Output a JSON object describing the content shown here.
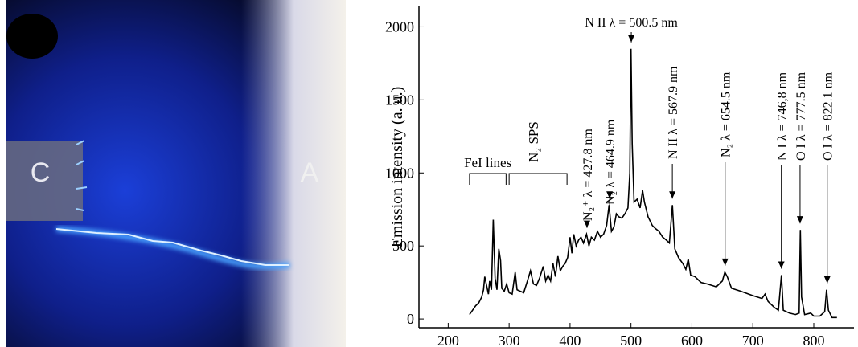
{
  "photo_labels": [
    "C",
    "A"
  ],
  "chart_data": {
    "type": "line",
    "ylabel": "Emission intensity (a. u.)",
    "xlim": [
      152,
      866
    ],
    "ylim": [
      -60,
      2140
    ],
    "xticks": [
      200,
      300,
      400,
      500,
      600,
      700,
      800
    ],
    "yticks": [
      0,
      500,
      1000,
      1500,
      2000
    ],
    "x": [
      235,
      240,
      245,
      250,
      255,
      258,
      260,
      263,
      266,
      268,
      271,
      274,
      277,
      280,
      283,
      286,
      288,
      292,
      296,
      300,
      305,
      310,
      313,
      318,
      324,
      330,
      335,
      340,
      345,
      350,
      356,
      360,
      364,
      368,
      372,
      376,
      380,
      384,
      388,
      392,
      396,
      400,
      403,
      406,
      410,
      414,
      418,
      422,
      427,
      431,
      435,
      440,
      445,
      450,
      455,
      460,
      464,
      468,
      472,
      476,
      480,
      485,
      490,
      495,
      498,
      500,
      502,
      505,
      510,
      515,
      519,
      522,
      528,
      535,
      540,
      546,
      552,
      558,
      563,
      568,
      572,
      578,
      585,
      590,
      594,
      598,
      605,
      615,
      625,
      640,
      650,
      654,
      658,
      665,
      680,
      700,
      715,
      720,
      725,
      735,
      742,
      747,
      750,
      760,
      770,
      776,
      778,
      780,
      785,
      795,
      800,
      810,
      818,
      821,
      824,
      830,
      838
    ],
    "series": [
      {
        "color": "#000000",
        "values": [
          30,
          60,
          90,
          110,
          150,
          200,
          290,
          230,
          170,
          260,
          200,
          680,
          280,
          200,
          480,
          400,
          210,
          190,
          240,
          180,
          170,
          320,
          200,
          190,
          180,
          260,
          330,
          240,
          230,
          280,
          360,
          260,
          300,
          260,
          380,
          290,
          430,
          330,
          360,
          380,
          420,
          560,
          450,
          580,
          500,
          540,
          560,
          520,
          580,
          500,
          560,
          540,
          600,
          560,
          580,
          640,
          780,
          600,
          630,
          720,
          700,
          690,
          720,
          760,
          1000,
          1850,
          1200,
          800,
          820,
          760,
          880,
          800,
          700,
          640,
          620,
          600,
          560,
          540,
          520,
          780,
          480,
          420,
          380,
          340,
          410,
          300,
          290,
          250,
          240,
          220,
          260,
          320,
          290,
          210,
          190,
          160,
          140,
          170,
          120,
          80,
          60,
          300,
          60,
          40,
          30,
          40,
          610,
          150,
          30,
          40,
          20,
          20,
          50,
          200,
          60,
          10,
          10
        ]
      }
    ],
    "annotations": [
      {
        "text": "FeI lines",
        "range": [
          235,
          295
        ]
      },
      {
        "text": "N₂ SPS",
        "range": [
          300,
          395
        ]
      },
      {
        "text": "N₂⁺ λ = 427.8 nm",
        "x": 427.8
      },
      {
        "text": "N₂  λ = 464.9 nm",
        "x": 464.9
      },
      {
        "text": "N II  λ = 500.5 nm",
        "x": 500.5
      },
      {
        "text": "N II  λ = 567.9 nm",
        "x": 567.9
      },
      {
        "text": "N₂  λ = 654.5 nm",
        "x": 654.5
      },
      {
        "text": "N I  λ = 746,8 nm",
        "x": 746.8
      },
      {
        "text": "O I  λ = 777.5 nm",
        "x": 777.5
      },
      {
        "text": "O I  λ = 822.1 nm",
        "x": 822.1
      }
    ]
  }
}
